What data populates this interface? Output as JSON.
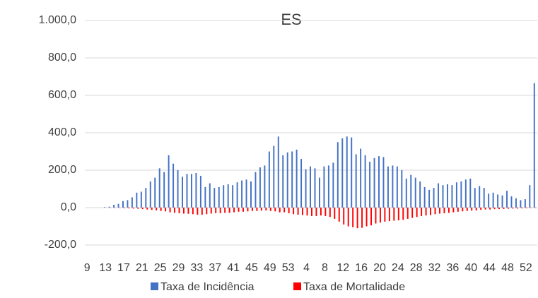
{
  "chart_data": {
    "type": "bar",
    "title": "ES",
    "categories": [
      "9",
      null,
      null,
      null,
      "13",
      null,
      null,
      null,
      "17",
      null,
      null,
      null,
      "21",
      null,
      null,
      null,
      "25",
      null,
      null,
      null,
      "29",
      null,
      null,
      null,
      "33",
      null,
      null,
      null,
      "37",
      null,
      null,
      null,
      "41",
      null,
      null,
      null,
      "45",
      null,
      null,
      null,
      "49",
      null,
      null,
      null,
      "53",
      null,
      null,
      null,
      "4",
      null,
      null,
      null,
      "8",
      null,
      null,
      null,
      "12",
      null,
      null,
      null,
      "16",
      null,
      null,
      null,
      "20",
      null,
      null,
      null,
      "24",
      null,
      null,
      null,
      "28",
      null,
      null,
      null,
      "32",
      null,
      null,
      null,
      "36",
      null,
      null,
      null,
      "40",
      null,
      null,
      null,
      "44",
      null,
      null,
      null,
      "48",
      null,
      null,
      null,
      "52",
      null,
      null
    ],
    "series": [
      {
        "name": "Taxa de Incidência",
        "color": "#4472c4",
        "values": [
          0,
          0,
          0,
          0,
          3,
          5,
          15,
          20,
          35,
          40,
          55,
          80,
          85,
          105,
          140,
          160,
          210,
          190,
          280,
          235,
          200,
          165,
          180,
          180,
          185,
          170,
          110,
          130,
          105,
          110,
          120,
          125,
          120,
          135,
          145,
          150,
          140,
          190,
          215,
          225,
          300,
          330,
          380,
          280,
          295,
          300,
          310,
          260,
          205,
          220,
          210,
          160,
          220,
          225,
          240,
          350,
          370,
          380,
          375,
          285,
          315,
          280,
          245,
          265,
          275,
          270,
          220,
          225,
          220,
          200,
          155,
          175,
          160,
          140,
          110,
          95,
          105,
          130,
          120,
          125,
          120,
          135,
          140,
          150,
          155,
          105,
          115,
          105,
          75,
          80,
          70,
          65,
          90,
          60,
          50,
          40,
          45,
          120,
          665
        ]
      },
      {
        "name": "Taxa de Mortalidade",
        "color": "#ff0000",
        "values": [
          0,
          0,
          0,
          0,
          0,
          -1,
          -1,
          -2,
          -3,
          -4,
          -5,
          -6,
          -8,
          -10,
          -12,
          -15,
          -18,
          -20,
          -25,
          -28,
          -30,
          -32,
          -33,
          -35,
          -38,
          -38,
          -35,
          -32,
          -30,
          -30,
          -28,
          -28,
          -25,
          -22,
          -22,
          -20,
          -18,
          -18,
          -16,
          -15,
          -18,
          -20,
          -25,
          -25,
          -30,
          -35,
          -38,
          -40,
          -42,
          -45,
          -45,
          -42,
          -45,
          -50,
          -60,
          -75,
          -90,
          -100,
          -105,
          -110,
          -108,
          -100,
          -95,
          -85,
          -80,
          -75,
          -72,
          -70,
          -68,
          -65,
          -60,
          -55,
          -50,
          -45,
          -42,
          -40,
          -35,
          -32,
          -30,
          -28,
          -25,
          -22,
          -20,
          -18,
          -16,
          -15,
          -12,
          -10,
          -10,
          -8,
          -8,
          -7,
          -6,
          -5,
          -5,
          -4,
          -3,
          -2,
          -2
        ]
      }
    ],
    "ylim": [
      -200,
      1000
    ],
    "yticks": [
      {
        "value": -200,
        "label": "-200,0"
      },
      {
        "value": 0,
        "label": "0,0"
      },
      {
        "value": 200,
        "label": "200,0"
      },
      {
        "value": 400,
        "label": "400,0"
      },
      {
        "value": 600,
        "label": "600,0"
      },
      {
        "value": 800,
        "label": "800,0"
      },
      {
        "value": 1000,
        "label": "1.000,0"
      }
    ],
    "grid": true
  }
}
